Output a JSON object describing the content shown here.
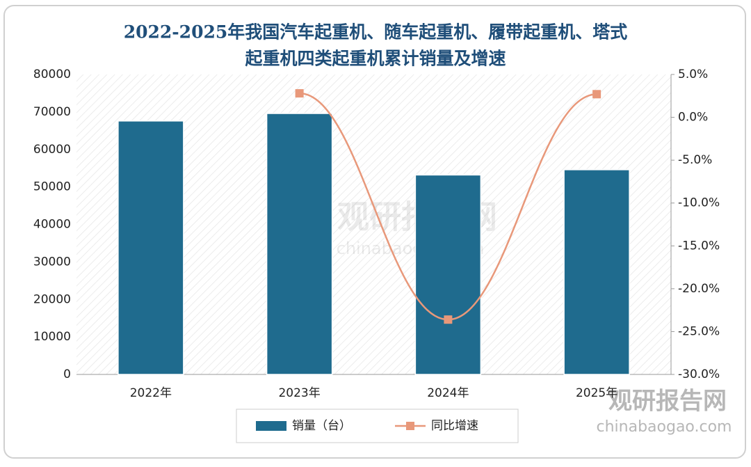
{
  "chart_data": {
    "type": "bar_line",
    "title": [
      "2022-2025年我国汽车起重机、随车起重机、履带起重机、塔式",
      "起重机四类起重机累计销量及增速"
    ],
    "categories": [
      "2022年",
      "2023年",
      "2024年",
      "2025年"
    ],
    "series": [
      {
        "name": "销量（台）",
        "type": "bar",
        "color": "#1f6b8e",
        "values": [
          67600,
          69600,
          53200,
          54600
        ]
      },
      {
        "name": "同比增速",
        "type": "line",
        "axis": "y2",
        "color": "#e8987a",
        "values": [
          null,
          2.8,
          -23.6,
          2.7
        ]
      }
    ],
    "ylim": [
      0,
      80000
    ],
    "yticks": [
      0,
      10000,
      20000,
      30000,
      40000,
      50000,
      60000,
      70000,
      80000
    ],
    "y2lim": [
      -30,
      5
    ],
    "y2ticks": [
      {
        "value": 5,
        "label": "5.0%"
      },
      {
        "value": 0,
        "label": "0.0%"
      },
      {
        "value": -5,
        "label": "-5.0%"
      },
      {
        "value": -10,
        "label": "-10.0%"
      },
      {
        "value": -15,
        "label": "-15.0%"
      },
      {
        "value": -20,
        "label": "-20.0%"
      },
      {
        "value": -25,
        "label": "-25.0%"
      },
      {
        "value": -30,
        "label": "-30.0%"
      }
    ],
    "legend": "bottom",
    "watermark": [
      "观研报告网",
      "chinabaogao.com"
    ]
  }
}
